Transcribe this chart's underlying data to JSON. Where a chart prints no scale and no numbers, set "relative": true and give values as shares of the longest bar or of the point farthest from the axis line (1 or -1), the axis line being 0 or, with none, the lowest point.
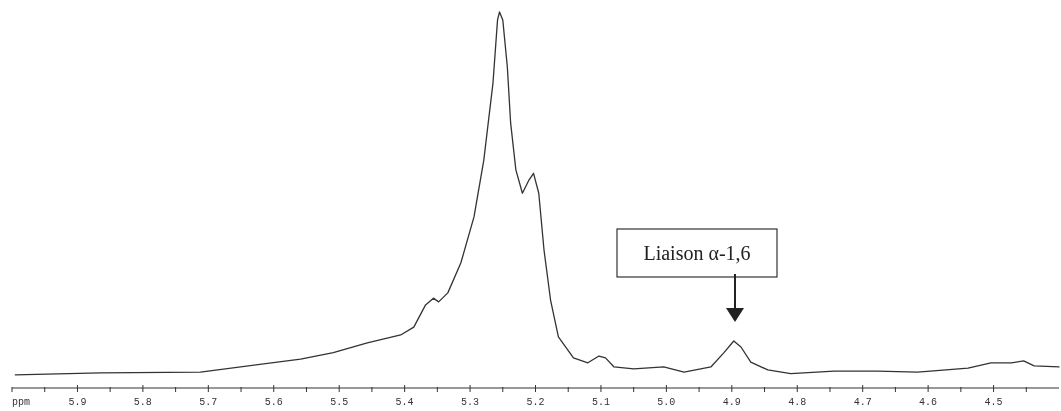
{
  "chart_data": {
    "type": "line",
    "relative": true,
    "xlabel": "ppm",
    "xlim": [
      6.0,
      4.4
    ],
    "xticks": [
      {
        "value": 6.0,
        "label": null
      },
      {
        "value": 5.95,
        "label": null
      },
      5.9,
      {
        "value": 5.85,
        "label": null
      },
      5.8,
      {
        "value": 5.75,
        "label": null
      },
      5.7,
      {
        "value": 5.65,
        "label": null
      },
      5.6,
      {
        "value": 5.55,
        "label": null
      },
      5.5,
      {
        "value": 5.45,
        "label": null
      },
      5.4,
      {
        "value": 5.35,
        "label": null
      },
      5.3,
      {
        "value": 5.25,
        "label": null
      },
      5.2,
      {
        "value": 5.15,
        "label": null
      },
      5.1,
      {
        "value": 5.05,
        "label": null
      },
      {
        "value": 5.0,
        "label": "5.0"
      },
      {
        "value": 4.95,
        "label": null
      },
      4.9,
      {
        "value": 4.85,
        "label": null
      },
      4.8,
      {
        "value": 4.75,
        "label": null
      },
      4.7,
      {
        "value": 4.65,
        "label": null
      },
      4.6,
      {
        "value": 4.55,
        "label": null
      },
      4.5,
      {
        "value": 4.45,
        "label": null
      }
    ],
    "grid": false,
    "marker": "none",
    "line_style": "solid",
    "annotations": [
      "Liaison α-1,6"
    ],
    "series": [
      {
        "color": "#333333",
        "x": [
          5.995,
          5.865,
          5.712,
          5.559,
          5.509,
          5.457,
          5.406,
          5.386,
          5.368,
          5.356,
          5.348,
          5.334,
          5.314,
          5.294,
          5.279,
          5.265,
          5.258,
          5.255,
          5.25,
          5.243,
          5.238,
          5.23,
          5.22,
          5.21,
          5.203,
          5.195,
          5.187,
          5.177,
          5.165,
          5.142,
          5.12,
          5.103,
          5.093,
          5.08,
          5.05,
          5.004,
          4.973,
          4.932,
          4.912,
          4.897,
          4.886,
          4.871,
          4.845,
          4.81,
          4.744,
          4.677,
          4.616,
          4.539,
          4.504,
          4.473,
          4.454,
          4.438,
          4.4
        ],
        "values": [
          0.035,
          0.04,
          0.042,
          0.077,
          0.094,
          0.12,
          0.141,
          0.162,
          0.221,
          0.239,
          0.229,
          0.253,
          0.333,
          0.455,
          0.606,
          0.811,
          0.979,
          1,
          0.979,
          0.853,
          0.705,
          0.58,
          0.518,
          0.553,
          0.571,
          0.518,
          0.367,
          0.234,
          0.136,
          0.08,
          0.067,
          0.085,
          0.08,
          0.056,
          0.051,
          0.056,
          0.042,
          0.056,
          0.094,
          0.125,
          0.109,
          0.069,
          0.048,
          0.038,
          0.045,
          0.045,
          0.042,
          0.053,
          0.067,
          0.067,
          0.072,
          0.059,
          0.056
        ]
      }
    ]
  }
}
